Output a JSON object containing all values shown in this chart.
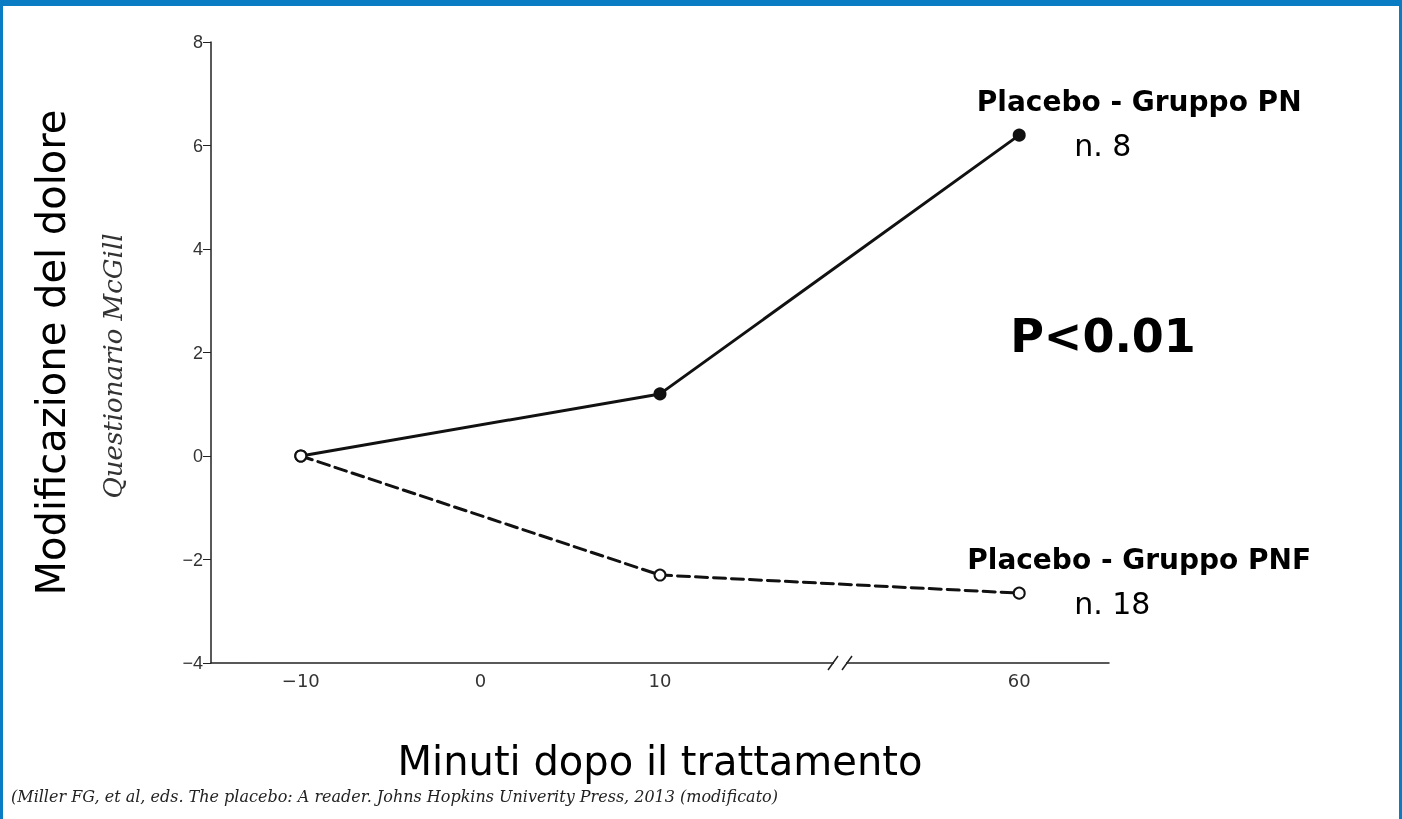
{
  "chart_data": {
    "type": "line",
    "xlabel": "Minuti dopo il trattamento",
    "ylabel": "Modificazione del dolore",
    "categories": [
      "−10",
      "0",
      "10",
      null,
      "60"
    ],
    "series": [
      {
        "name": "Placebo - Gruppo PN",
        "color": "#111111",
        "values": [
          0,
          null,
          1.2,
          null,
          6.2
        ],
        "line_style": "solid",
        "marker": "circle"
      },
      {
        "name": "Placebo - Gruppo PNF",
        "color": "#111111",
        "values": [
          0,
          null,
          -2.3,
          null,
          -2.65
        ],
        "line_style": "dashed",
        "marker": "circle"
      }
    ],
    "ylim": [
      -4,
      8
    ],
    "yticks": [
      -4,
      -2,
      0,
      2,
      4,
      6,
      8
    ],
    "annotations": [
      "Questionario McGill",
      "P<0.01",
      "(Miller FG, et al, eds. The placebo: A reader. Johns Hopkins Univerity Press, 2013 (modificato)",
      {
        "text": "n. 8",
        "x": "60",
        "y": 6.2
      },
      {
        "text": "n. 18",
        "x": "60",
        "y": -2.65
      }
    ],
    "legend": false
  }
}
